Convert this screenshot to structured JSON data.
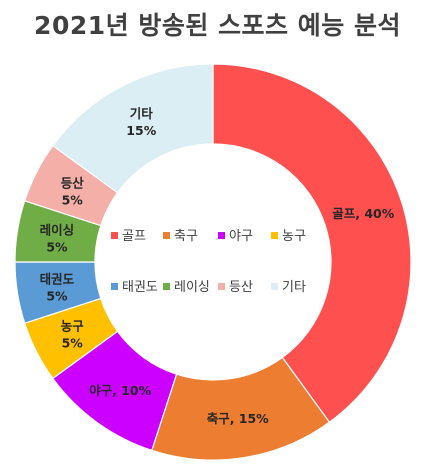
{
  "chart_data": {
    "type": "pie",
    "variant": "donut",
    "title": "2021년 방송된 스포츠 예능 분석",
    "categories": [
      "골프",
      "축구",
      "야구",
      "농구",
      "태권도",
      "레이싱",
      "등산",
      "기타"
    ],
    "values": [
      40,
      15,
      10,
      5,
      5,
      5,
      5,
      15
    ],
    "unit": "%",
    "colors": [
      "#FF5050",
      "#ED7D31",
      "#CC00FF",
      "#FFC000",
      "#5B9BD5",
      "#70AD47",
      "#F4B0A8",
      "#DAEEF3"
    ],
    "labels": [
      {
        "line1": "골프, 40%"
      },
      {
        "line1": "축구, 15%"
      },
      {
        "line1": "야구, 10%"
      },
      {
        "line1": "농구",
        "line2": "5%"
      },
      {
        "line1": "태권도",
        "line2": "5%"
      },
      {
        "line1": "레이싱",
        "line2": "5%"
      },
      {
        "line1": "등산",
        "line2": "5%"
      },
      {
        "line1": "기타",
        "line2": "15%"
      }
    ],
    "legend_position": "center"
  }
}
